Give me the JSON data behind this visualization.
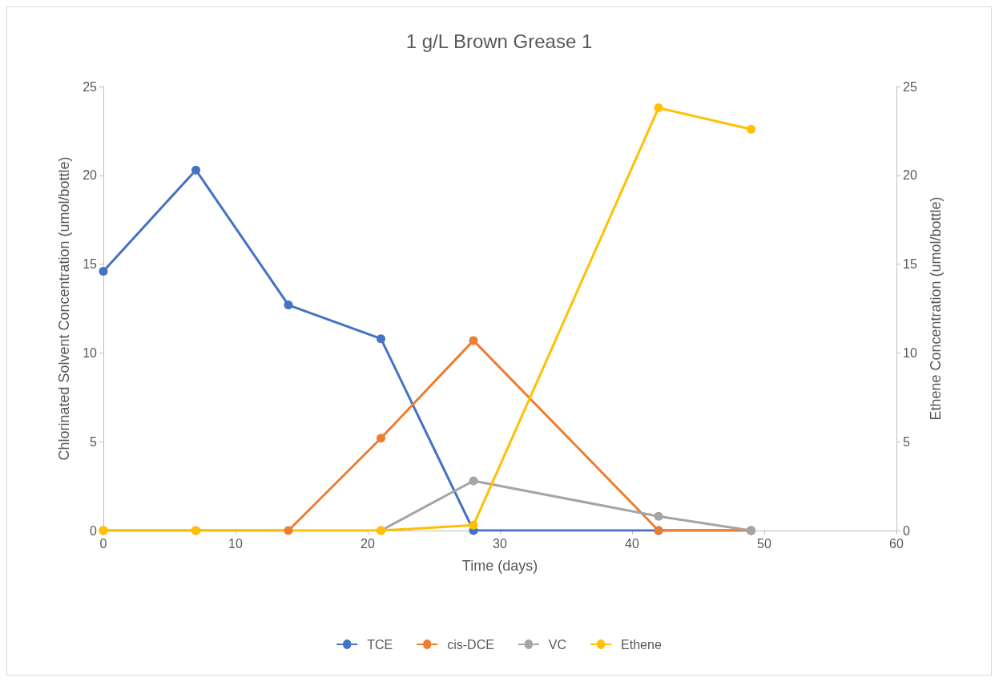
{
  "chart_data": {
    "type": "line",
    "title": "1 g/L Brown Grease 1",
    "xlabel": "Time (days)",
    "ylabel": "Chlorinated Solvent Concentration (umol/bottle)",
    "y2label": "Ethene Concentration (umol/bottle)",
    "xlim": [
      0,
      60
    ],
    "xticks": [
      0,
      10,
      20,
      30,
      40,
      50,
      60
    ],
    "ylim": [
      0,
      25
    ],
    "yticks": [
      0,
      5,
      10,
      15,
      20,
      25
    ],
    "y2lim": [
      0,
      25
    ],
    "y2ticks": [
      0,
      5,
      10,
      15,
      20,
      25
    ],
    "grid": false,
    "legend": "bottom",
    "marker": "circle",
    "line_style": "solid",
    "series": [
      {
        "name": "TCE",
        "color": "#4472c4",
        "x": [
          0,
          7,
          14,
          21,
          28,
          42,
          49
        ],
        "values": [
          14.6,
          20.3,
          12.7,
          10.8,
          0,
          0,
          0
        ]
      },
      {
        "name": "cis-DCE",
        "color": "#ed7d31",
        "x": [
          0,
          7,
          14,
          21,
          28,
          42,
          49
        ],
        "values": [
          0,
          0,
          0,
          5.2,
          10.7,
          0,
          0
        ]
      },
      {
        "name": "VC",
        "color": "#a5a5a5",
        "x": [
          21,
          28,
          42,
          49
        ],
        "values": [
          0,
          2.8,
          0.8,
          0
        ]
      },
      {
        "name": "Ethene",
        "color": "#ffc000",
        "axis": "y2",
        "x": [
          0,
          7,
          21,
          28,
          42,
          49
        ],
        "values": [
          0,
          0,
          0,
          0.3,
          23.8,
          22.6
        ]
      }
    ]
  }
}
